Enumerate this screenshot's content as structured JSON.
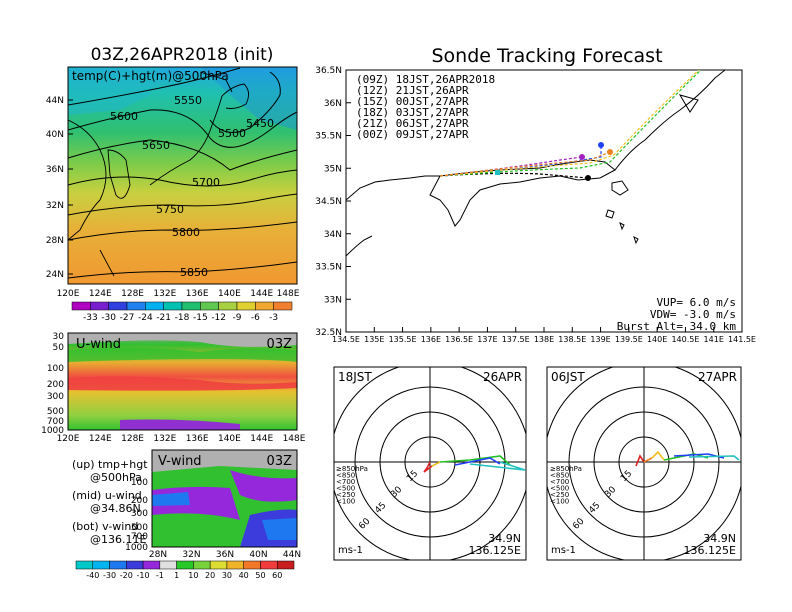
{
  "left_title": "03Z,26APR2018 (init)",
  "right_title": "Sonde Tracking Forecast",
  "top_map": {
    "label": "temp(C)+hgt(m)@500hPa",
    "lat_ticks": [
      "44N",
      "40N",
      "36N",
      "32N",
      "28N",
      "24N"
    ],
    "lon_ticks": [
      "120E",
      "124E",
      "128E",
      "132E",
      "136E",
      "140E",
      "144E",
      "148E"
    ],
    "contours": [
      "5450",
      "5500",
      "5550",
      "5600",
      "5650",
      "5700",
      "5750",
      "5800",
      "5850"
    ],
    "colorbar_labels": [
      "-33",
      "-30",
      "-27",
      "-24",
      "-21",
      "-18",
      "-15",
      "-12",
      "-9",
      "-6",
      "-3"
    ],
    "colorbar_colors": [
      "#b000c0",
      "#7820d0",
      "#3040e0",
      "#2080f0",
      "#00b0f0",
      "#00c0b0",
      "#20c070",
      "#60c850",
      "#a8d040",
      "#e0d030",
      "#f0a830",
      "#f08030"
    ]
  },
  "uwind": {
    "label": "U-wind",
    "time": "03Z",
    "y_ticks": [
      "30",
      "50",
      "100",
      "200",
      "300",
      "500",
      "700",
      "1000"
    ],
    "x_ticks": [
      "120E",
      "124E",
      "128E",
      "132E",
      "136E",
      "140E",
      "144E",
      "148E"
    ]
  },
  "vwind": {
    "label": "V-wind",
    "time": "03Z",
    "y_ticks": [
      "100",
      "200",
      "300",
      "500",
      "700",
      "1000"
    ],
    "x_ticks": [
      "28N",
      "32N",
      "36N",
      "40N",
      "44N"
    ]
  },
  "notes": {
    "up1": "(up) tmp+hgt",
    "up2": "@500hPa",
    "mid1": "(mid) u-wind",
    "mid2": "@34.86N",
    "bot1": "(bot) v-wind",
    "bot2": "@136.11E"
  },
  "wind_colorbar": {
    "labels": [
      "-40",
      "-30",
      "-20",
      "-10",
      "-1",
      "1",
      "10",
      "20",
      "30",
      "40",
      "50",
      "60"
    ],
    "colors": [
      "#00c8c8",
      "#00b4f0",
      "#1e78f0",
      "#3c3cdc",
      "#9628dc",
      "#e0e0e0",
      "#28c828",
      "#78d23c",
      "#dcdc32",
      "#f0b428",
      "#f07828",
      "#f03c3c",
      "#c81e1e"
    ]
  },
  "track_map": {
    "lat_ticks": [
      "36.5N",
      "36N",
      "35.5N",
      "35N",
      "34.5N",
      "34N",
      "33.5N",
      "33N",
      "32.5N"
    ],
    "lon_ticks": [
      "134.5E",
      "135E",
      "135.5E",
      "136E",
      "136.5E",
      "137E",
      "137.5E",
      "138E",
      "138.5E",
      "139E",
      "139.5E",
      "140E",
      "140.5E",
      "141E",
      "141.5E"
    ],
    "legend": [
      {
        "label": "(09Z)  18JST,26APR2018",
        "color": "#000000"
      },
      {
        "label": "(12Z)  21JST,26APR",
        "color": "#a020c0"
      },
      {
        "label": "(15Z)  00JST,27APR",
        "color": "#2040ff"
      },
      {
        "label": "(18Z)  03JST,27APR",
        "color": "#20c020"
      },
      {
        "label": "(21Z)  06JST,27APR",
        "color": "#f0c020"
      },
      {
        "label": "(00Z)  09JST,27APR",
        "color": "#f08020"
      }
    ],
    "vup": "VUP=  6.0 m/s",
    "vdw": "VDW= -3.0 m/s",
    "burst": "Burst Alt= 34.0 km"
  },
  "hodo_left": {
    "time": "18JST",
    "date": "26APR",
    "lat": "34.9N",
    "lon": "136.125E",
    "unit": "ms-1",
    "ring_labels": [
      "15",
      "30",
      "45",
      "60"
    ],
    "levels": [
      {
        "label": "≥850hPa",
        "color": "#e02020"
      },
      {
        "label": "<850",
        "color": "#f08020"
      },
      {
        "label": "<700",
        "color": "#f0c020"
      },
      {
        "label": "<500",
        "color": "#20c020"
      },
      {
        "label": "<250",
        "color": "#20c0c0"
      },
      {
        "label": "<100",
        "color": "#2040ff"
      }
    ]
  },
  "hodo_right": {
    "time": "06JST",
    "date": "27APR",
    "lat": "34.9N",
    "lon": "136.125E",
    "unit": "ms-1",
    "ring_labels": [
      "15",
      "30",
      "45",
      "60"
    ],
    "levels": [
      {
        "label": "≥850hPa",
        "color": "#e02020"
      },
      {
        "label": "<850",
        "color": "#f08020"
      },
      {
        "label": "<700",
        "color": "#f0c020"
      },
      {
        "label": "<500",
        "color": "#20c020"
      },
      {
        "label": "<250",
        "color": "#20c0c0"
      },
      {
        "label": "<100",
        "color": "#2040ff"
      }
    ]
  }
}
